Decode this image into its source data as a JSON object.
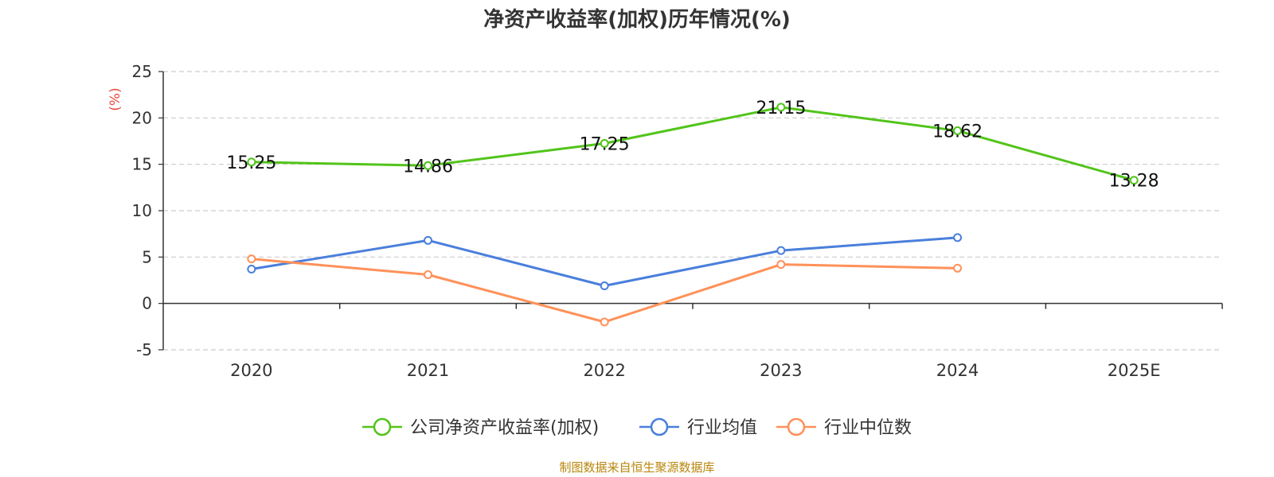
{
  "chart_data": {
    "type": "line",
    "title": "净资产收益率(加权)历年情况(%)",
    "ylabel": "(%)",
    "categories": [
      "2020",
      "2021",
      "2022",
      "2023",
      "2024",
      "2025E"
    ],
    "ylim": [
      -5,
      25
    ],
    "yticks": [
      -5,
      0,
      5,
      10,
      15,
      20,
      25
    ],
    "grid": true,
    "legend_position": "bottom-center",
    "series": [
      {
        "name": "公司净资产收益率(加权)",
        "color": "#52c41a",
        "values": [
          15.25,
          14.86,
          17.25,
          21.15,
          18.62,
          13.28
        ],
        "labels": [
          "15.25",
          "14.86",
          "17.25",
          "21.15",
          "18.62",
          "13.28"
        ]
      },
      {
        "name": "行业均值",
        "color": "#4a7fdc",
        "values": [
          3.7,
          6.8,
          1.9,
          5.7,
          7.1,
          null
        ]
      },
      {
        "name": "行业中位数",
        "color": "#ff9159",
        "values": [
          4.8,
          3.1,
          -2.0,
          4.2,
          3.8,
          null
        ]
      }
    ]
  },
  "source": "制图数据来自恒生聚源数据库",
  "colors": {
    "axis": "#333333",
    "grid": "#cccccc",
    "ylabel": "#e8473e",
    "title": "#333333",
    "source": "#b8860b"
  }
}
